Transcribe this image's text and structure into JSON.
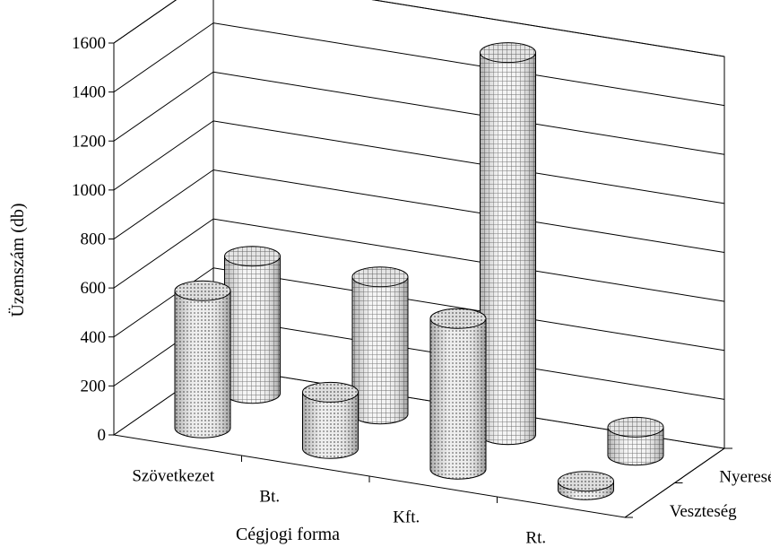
{
  "chart_data": {
    "type": "bar",
    "style": "3d-cylinder",
    "title": "",
    "xlabel": "Cégjogi forma",
    "ylabel": "Üzemszám (db)",
    "ylim": [
      0,
      1600
    ],
    "yticks": [
      "0",
      "200",
      "400",
      "600",
      "800",
      "1000",
      "1200",
      "1400",
      "1600"
    ],
    "categories": [
      "Szövetkezet",
      "Bt.",
      "Kft.",
      "Rt."
    ],
    "series": [
      {
        "name": "Veszteség",
        "values": [
          560,
          230,
          615,
          35
        ]
      },
      {
        "name": "Nyereség",
        "values": [
          560,
          560,
          1560,
          115
        ]
      }
    ],
    "grid": true,
    "colors": {
      "bar_fill": "#d4d4d4",
      "bar_top": "#c2c2c2",
      "lines": "#000000"
    }
  }
}
